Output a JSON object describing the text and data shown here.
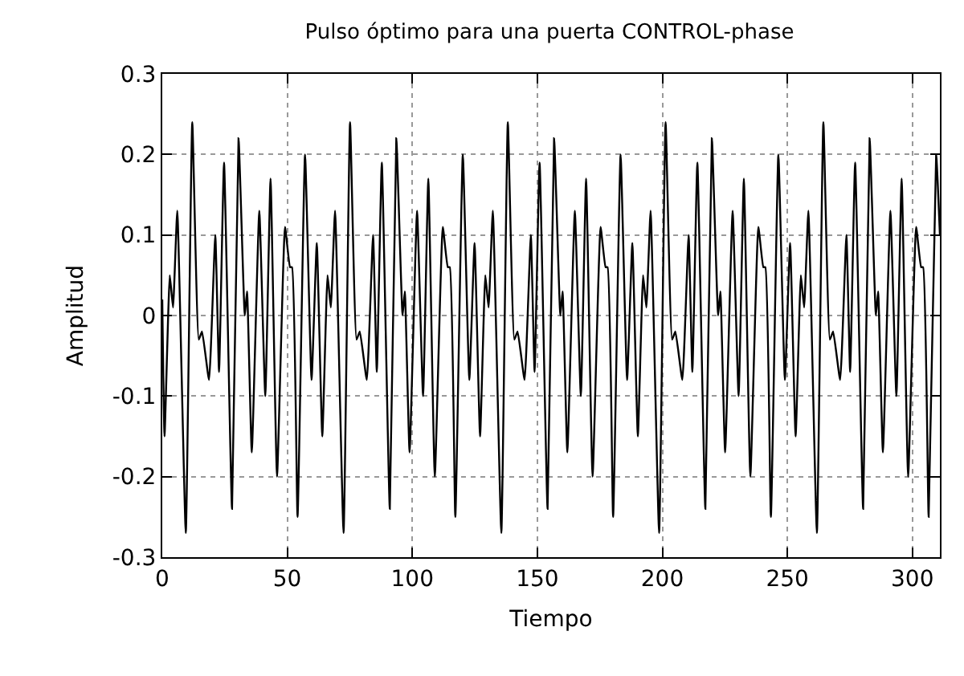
{
  "chart_data": {
    "type": "line",
    "title": "Pulso óptimo para una puerta CONTROL-phase",
    "xlabel": "Tiempo",
    "ylabel": "Amplitud",
    "x": [
      0,
      0.9,
      3.0,
      4.3,
      6.0,
      9.4,
      12.0,
      14.6,
      15.9,
      18.7,
      21.2,
      22.7,
      24.7,
      27.9,
      30.5,
      33.0,
      33.9,
      35.8,
      38.8,
      41.2,
      43.3,
      45.9,
      49.1,
      51.1,
      51.9,
      54.1,
      57.1,
      59.7,
      61.8,
      64.0,
      66.1,
      67.4,
      69.1,
      72.5,
      75.1,
      77.7,
      79.0,
      81.8,
      84.3,
      85.8,
      87.8,
      91.0,
      93.6,
      96.1,
      97.0,
      98.9,
      101.9,
      104.3,
      106.4,
      109.0,
      112.2,
      114.2,
      115.0,
      117.2,
      120.2,
      122.8,
      124.9,
      127.1,
      129.2,
      130.5,
      132.2,
      135.6,
      138.2,
      140.8,
      142.1,
      144.9,
      147.4,
      148.9,
      150.9,
      154.1,
      156.7,
      159.2,
      160.1,
      162.0,
      165.0,
      167.4,
      169.5,
      172.1,
      175.3,
      177.3,
      178.1,
      180.3,
      183.3,
      185.9,
      188.0,
      190.2,
      192.3,
      193.6,
      195.3,
      198.7,
      201.3,
      203.9,
      205.2,
      208.0,
      210.5,
      212.0,
      214.0,
      217.2,
      219.8,
      222.3,
      223.2,
      225.1,
      228.1,
      230.5,
      232.6,
      235.2,
      238.4,
      240.4,
      241.2,
      243.4,
      246.4,
      249.0,
      251.1,
      253.3,
      255.4,
      256.7,
      258.4,
      261.8,
      264.4,
      267.0,
      268.3,
      271.1,
      273.6,
      275.1,
      277.1,
      280.3,
      282.9,
      285.4,
      286.3,
      288.2,
      291.2,
      293.6,
      295.7,
      298.3,
      301.5,
      303.5,
      304.3,
      306.5,
      309.5,
      311
    ],
    "series": [
      {
        "color": "#000000",
        "values": [
          0.02,
          -0.15,
          0.05,
          0.01,
          0.13,
          -0.27,
          0.24,
          -0.03,
          -0.02,
          -0.08,
          0.1,
          -0.07,
          0.19,
          -0.24,
          0.22,
          0,
          0.03,
          -0.17,
          0.13,
          -0.1,
          0.17,
          -0.2,
          0.11,
          0.06,
          0.06,
          -0.25,
          0.2,
          -0.08,
          0.09,
          -0.15,
          0.05,
          0.01,
          0.13,
          -0.27,
          0.24,
          -0.03,
          -0.02,
          -0.08,
          0.1,
          -0.07,
          0.19,
          -0.24,
          0.22,
          0,
          0.03,
          -0.17,
          0.13,
          -0.1,
          0.17,
          -0.2,
          0.11,
          0.06,
          0.06,
          -0.25,
          0.2,
          -0.08,
          0.09,
          -0.15,
          0.05,
          0.01,
          0.13,
          -0.27,
          0.24,
          -0.03,
          -0.02,
          -0.08,
          0.1,
          -0.07,
          0.19,
          -0.24,
          0.22,
          0,
          0.03,
          -0.17,
          0.13,
          -0.1,
          0.17,
          -0.2,
          0.11,
          0.06,
          0.06,
          -0.25,
          0.2,
          -0.08,
          0.09,
          -0.15,
          0.05,
          0.01,
          0.13,
          -0.27,
          0.24,
          -0.03,
          -0.02,
          -0.08,
          0.1,
          -0.07,
          0.19,
          -0.24,
          0.22,
          0,
          0.03,
          -0.17,
          0.13,
          -0.1,
          0.17,
          -0.2,
          0.11,
          0.06,
          0.06,
          -0.25,
          0.2,
          -0.08,
          0.09,
          -0.15,
          0.05,
          0.01,
          0.13,
          -0.27,
          0.24,
          -0.03,
          -0.02,
          -0.08,
          0.1,
          -0.07,
          0.19,
          -0.24,
          0.22,
          0,
          0.03,
          -0.17,
          0.13,
          -0.1,
          0.17,
          -0.2,
          0.11,
          0.06,
          0.06,
          -0.25,
          0.2,
          0.1
        ]
      }
    ],
    "xlim": [
      0,
      311
    ],
    "ylim": [
      -0.3,
      0.3
    ],
    "xticks": [
      0,
      50,
      100,
      150,
      200,
      250,
      300
    ],
    "yticks": [
      -0.3,
      -0.2,
      -0.1,
      0,
      0.1,
      0.2,
      0.3
    ],
    "grid": true
  }
}
